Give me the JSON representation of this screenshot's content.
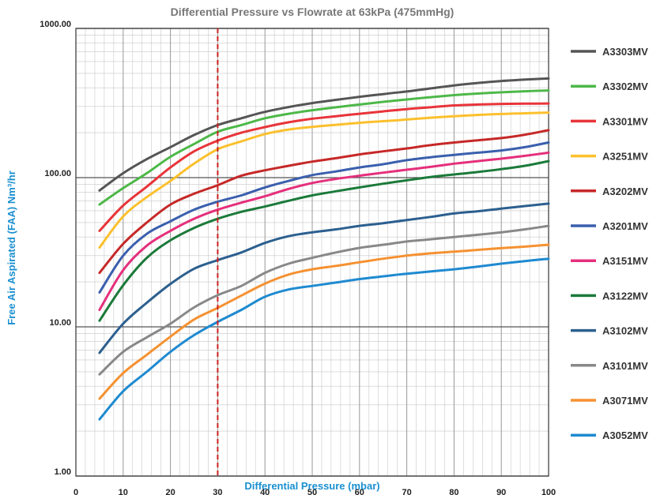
{
  "chart_data": {
    "type": "line",
    "title": "Differential Pressure vs Flowrate at 63kPa (475mmHg)",
    "xlabel": "Differential Pressure (mbar)",
    "ylabel": "Free Air Aspirated (FAA) Nm³/hr",
    "xlim": [
      0,
      100
    ],
    "ylim": [
      1,
      1000
    ],
    "y_scale": "log",
    "grid": true,
    "legend_position": "right",
    "axis_title_color": "#1a8fd0",
    "x_ticks": [
      {
        "value": 0,
        "label": "0"
      },
      {
        "value": 10,
        "label": "10"
      },
      {
        "value": 20,
        "label": "20"
      },
      {
        "value": 30,
        "label": "30"
      },
      {
        "value": 40,
        "label": "40"
      },
      {
        "value": 50,
        "label": "50"
      },
      {
        "value": 60,
        "label": "60"
      },
      {
        "value": 70,
        "label": "70"
      },
      {
        "value": 80,
        "label": "80"
      },
      {
        "value": 90,
        "label": "90"
      },
      {
        "value": 100,
        "label": "100"
      }
    ],
    "y_ticks": [
      {
        "value": 1,
        "label": "1.00"
      },
      {
        "value": 10,
        "label": "10.00"
      },
      {
        "value": 100,
        "label": "100.00"
      },
      {
        "value": 1000,
        "label": "1000.00"
      }
    ],
    "reference_line": {
      "x": 30,
      "color": "#cc2222"
    },
    "x": [
      5,
      10,
      15,
      20,
      25,
      30,
      35,
      40,
      45,
      50,
      55,
      60,
      65,
      70,
      75,
      80,
      85,
      90,
      95,
      100
    ],
    "series": [
      {
        "name": "A3303MV",
        "color": "#555555",
        "values": [
          82,
          107,
          133,
          160,
          193,
          225,
          250,
          276,
          297,
          316,
          332,
          348,
          363,
          378,
          396,
          415,
          431,
          444,
          454,
          462
        ]
      },
      {
        "name": "A3302MV",
        "color": "#4db848",
        "values": [
          66,
          85,
          107,
          138,
          168,
          203,
          225,
          250,
          268,
          283,
          296,
          309,
          322,
          334,
          346,
          357,
          366,
          373,
          379,
          384
        ]
      },
      {
        "name": "A3301MV",
        "color": "#e8343a",
        "values": [
          44,
          65,
          87,
          117,
          150,
          177,
          200,
          218,
          235,
          248,
          258,
          268,
          278,
          288,
          296,
          305,
          309,
          312,
          313,
          314
        ]
      },
      {
        "name": "A3251MV",
        "color": "#fbc02d",
        "values": [
          34,
          55,
          74,
          95,
          124,
          155,
          175,
          196,
          210,
          219,
          226,
          233,
          239,
          245,
          252,
          258,
          263,
          267,
          270,
          273
        ]
      },
      {
        "name": "A3202MV",
        "color": "#c62828",
        "values": [
          23,
          36,
          50,
          66,
          78,
          89,
          103,
          112,
          120,
          128,
          135,
          143,
          150,
          157,
          165,
          172,
          178,
          184,
          194,
          208
        ]
      },
      {
        "name": "A3201MV",
        "color": "#3a5fad",
        "values": [
          17,
          30,
          42,
          51,
          61,
          69,
          76,
          86,
          95,
          104,
          110,
          117,
          123,
          131,
          137,
          142,
          147,
          152,
          160,
          172
        ]
      },
      {
        "name": "A3151MV",
        "color": "#e52f7c",
        "values": [
          13,
          24,
          35,
          44,
          53,
          61,
          68,
          75,
          84,
          92,
          98,
          103,
          108,
          113,
          118,
          124,
          129,
          134,
          140,
          147
        ]
      },
      {
        "name": "A3122MV",
        "color": "#1b7a3a",
        "values": [
          11,
          19,
          29,
          38,
          46,
          53,
          59,
          64,
          70,
          76,
          81,
          86,
          91,
          96,
          101,
          105,
          109,
          114,
          120,
          129
        ]
      },
      {
        "name": "A3102MV",
        "color": "#2c5f8f",
        "values": [
          6.7,
          10.5,
          14.5,
          19.4,
          24.5,
          28,
          31.5,
          36.5,
          40.5,
          43,
          45,
          47.5,
          49.5,
          52,
          54.5,
          57.5,
          59.5,
          62,
          64.5,
          67
        ]
      },
      {
        "name": "A3101MV",
        "color": "#888888",
        "values": [
          4.8,
          6.8,
          8.5,
          10.5,
          13.5,
          16.3,
          18.8,
          23,
          26.5,
          29,
          31.5,
          33.8,
          35.5,
          37.3,
          38.6,
          40,
          41.4,
          43,
          45,
          47.5
        ]
      },
      {
        "name": "A3071MV",
        "color": "#f59131",
        "values": [
          3.3,
          4.9,
          6.5,
          8.6,
          11.2,
          13.4,
          16.2,
          19.5,
          22.4,
          24.3,
          25.6,
          27.1,
          28.6,
          30,
          31.1,
          31.9,
          32.8,
          33.7,
          34.5,
          35.5
        ]
      },
      {
        "name": "A3052MV",
        "color": "#1e8ad0",
        "values": [
          2.4,
          3.7,
          5,
          6.8,
          8.8,
          10.8,
          13,
          15.9,
          17.8,
          18.8,
          19.8,
          20.9,
          21.8,
          22.7,
          23.5,
          24.3,
          25.3,
          26.5,
          27.6,
          28.6
        ]
      }
    ]
  }
}
